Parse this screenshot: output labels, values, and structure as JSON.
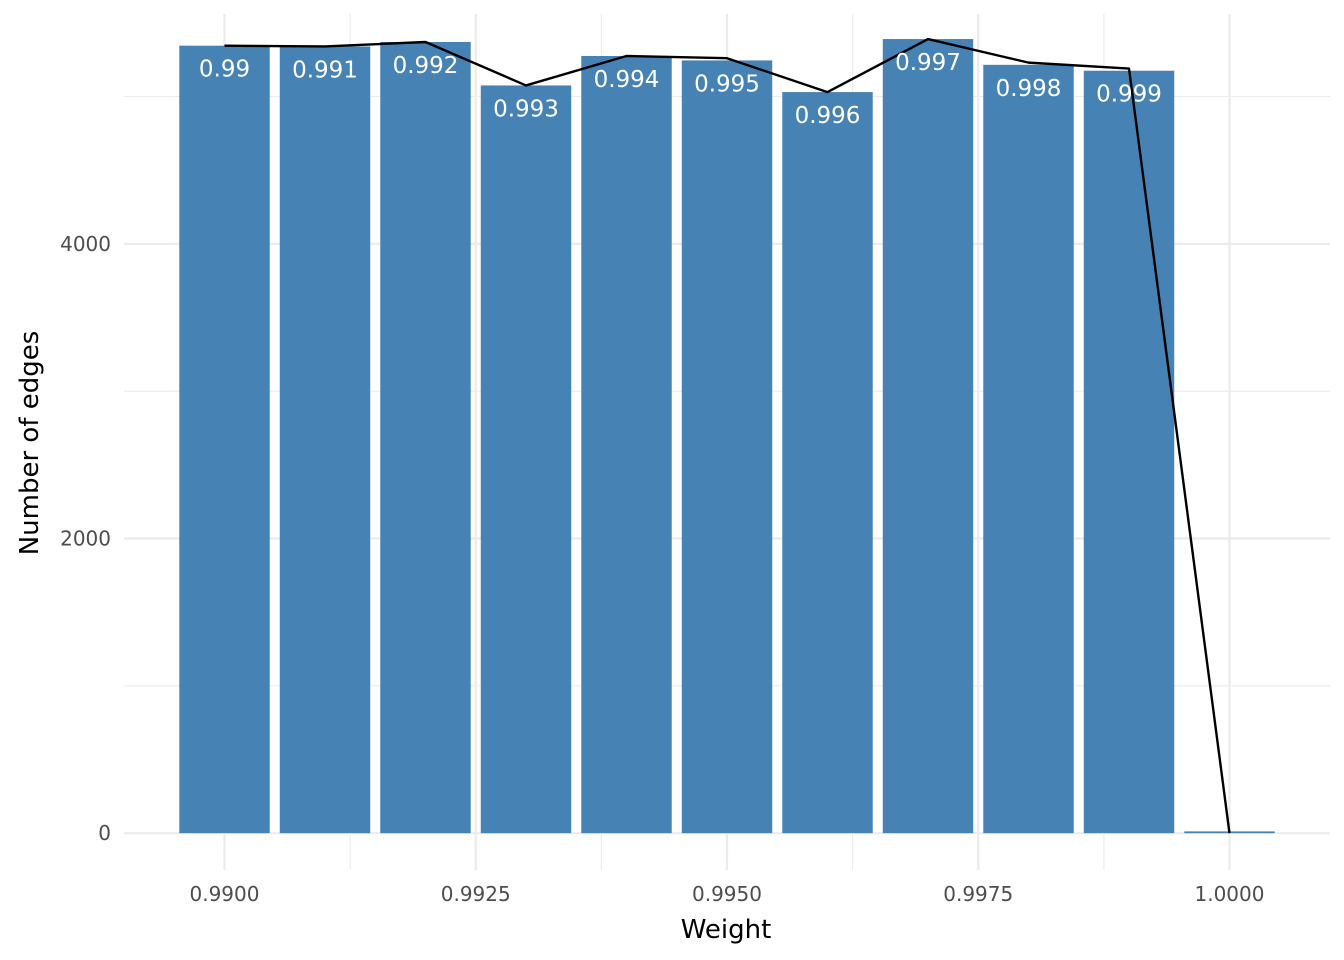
{
  "chart_data": {
    "type": "bar",
    "title": "",
    "xlabel": "Weight",
    "ylabel": "Number of edges",
    "x": [
      0.99,
      0.991,
      0.992,
      0.993,
      0.994,
      0.995,
      0.996,
      0.997,
      0.998,
      0.999,
      1.0
    ],
    "values": [
      5345,
      5340,
      5370,
      5075,
      5275,
      5245,
      5030,
      5390,
      5215,
      5175,
      12
    ],
    "bar_labels": [
      "0.99",
      "0.991",
      "0.992",
      "0.993",
      "0.994",
      "0.995",
      "0.996",
      "0.997",
      "0.998",
      "0.999",
      ""
    ],
    "line_values": [
      5345,
      5340,
      5370,
      5075,
      5275,
      5260,
      5030,
      5390,
      5230,
      5190,
      0
    ],
    "xlim": [
      0.989,
      1.001
    ],
    "ylim": [
      -250,
      5560
    ],
    "x_ticks": [
      0.99,
      0.9925,
      0.995,
      0.9975,
      1.0
    ],
    "x_tick_labels": [
      "0.9900",
      "0.9925",
      "0.9950",
      "0.9975",
      "1.0000"
    ],
    "x_minor_ticks": [
      0.99125,
      0.99375,
      0.99625,
      0.99875
    ],
    "y_ticks": [
      0,
      2000,
      4000
    ],
    "y_tick_labels": [
      "0",
      "2000",
      "4000"
    ],
    "y_minor_ticks": [
      1000,
      3000,
      5000
    ],
    "grid": true,
    "bar_color": "#4682B4",
    "line_color": "#000000",
    "grid_color": "#EBEBEB"
  }
}
